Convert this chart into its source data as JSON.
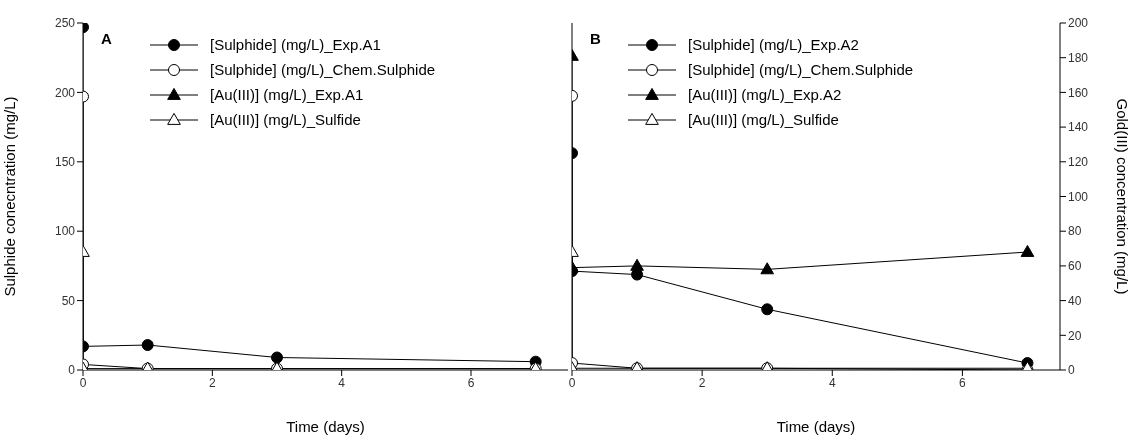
{
  "chart_data": [
    {
      "type": "line",
      "title": "A",
      "xlabel": "Time (days)",
      "ylabel": "Sulphide conecntration (mg/L)",
      "xlim": [
        0,
        7.5
      ],
      "xticks": [
        0,
        2,
        4,
        6
      ],
      "ylim": [
        0,
        250
      ],
      "yticks": [
        0,
        50,
        100,
        150,
        200,
        250
      ],
      "legend": "top",
      "series": [
        {
          "name": "[Sulphide] (mg/L)_Exp.A1",
          "color": "#000000",
          "marker": "circle",
          "x": [
            0,
            0,
            1,
            3,
            7
          ],
          "values": [
            247,
            17,
            18,
            9,
            6
          ]
        },
        {
          "name": "[Sulphide] (mg/L)_Chem.Sulphide",
          "color": "#ffffff",
          "marker": "circle",
          "x": [
            0,
            0,
            1,
            3,
            7
          ],
          "values": [
            197,
            4,
            1,
            1,
            1
          ]
        },
        {
          "name": "[Au(III)] (mg/L)_Exp.A1",
          "color": "#000000",
          "marker": "triangle"
        },
        {
          "name": "[Au(III)] (mg/L)_Sulfide",
          "color": "#ffffff",
          "marker": "triangle",
          "x": [
            0,
            0,
            1,
            3,
            7
          ],
          "values": [
            85,
            1,
            1,
            1,
            1
          ]
        }
      ]
    },
    {
      "type": "line",
      "title": "B",
      "xlabel": "Time (days)",
      "y2label": "Gold(III) concentration (mg/L)",
      "xlim": [
        0,
        7.5
      ],
      "xticks": [
        0,
        2,
        4,
        6
      ],
      "y2lim": [
        0,
        200
      ],
      "y2ticks": [
        0,
        20,
        40,
        60,
        80,
        100,
        120,
        140,
        160,
        180,
        200
      ],
      "legend": "top",
      "series": [
        {
          "name": "[Sulphide] (mg/L)_Exp.A2",
          "color": "#000000",
          "marker": "circle",
          "axis": "y2",
          "x": [
            0,
            0,
            1,
            3,
            7
          ],
          "values": [
            125,
            57,
            55,
            35,
            4
          ]
        },
        {
          "name": "[Sulphide] (mg/L)_Chem.Sulphide",
          "color": "#ffffff",
          "marker": "circle",
          "axis": "y2",
          "x": [
            0,
            0,
            1,
            3,
            7
          ],
          "values": [
            158,
            4,
            1,
            1,
            0
          ]
        },
        {
          "name": "[Au(III)] (mg/L)_Exp.A2",
          "color": "#000000",
          "marker": "triangle",
          "axis": "y2",
          "x": [
            0,
            0,
            1,
            3,
            7
          ],
          "values": [
            181,
            59,
            60,
            58,
            68
          ]
        },
        {
          "name": "[Au(III)] (mg/L)_Sulfide",
          "color": "#ffffff",
          "marker": "triangle",
          "axis": "y2",
          "x": [
            0,
            0,
            1,
            3,
            7
          ],
          "values": [
            68,
            1,
            1,
            1,
            1
          ]
        }
      ]
    }
  ]
}
